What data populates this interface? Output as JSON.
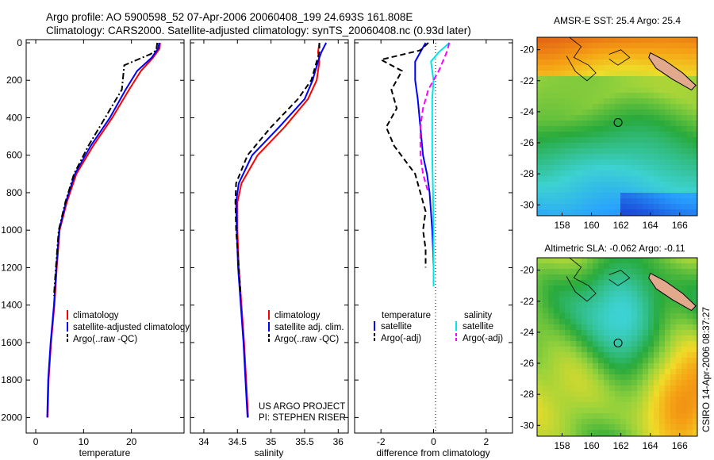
{
  "title": {
    "line1": "Argo profile: AO 5900598_52 07-Apr-2006 20060408_199 24.693S 161.808E",
    "line2": "Climatology: CARS2000. Satellite-adjusted climatology: synTS_20060408.nc (0.93d later)"
  },
  "side_label": "CSIRO 14-Apr-2006 08:37:27",
  "colors": {
    "red": "#ff0000",
    "blue": "#0000ff",
    "black": "#000000",
    "cyan": "#00e5e5",
    "magenta": "#ff00ff"
  },
  "chart_data": [
    {
      "type": "line",
      "name": "temperature",
      "xlabel": "temperature",
      "xlim": [
        -2,
        31
      ],
      "ylim": [
        2100,
        0
      ],
      "xticks": [
        0,
        10,
        20
      ],
      "yticks": [
        0,
        200,
        400,
        600,
        800,
        1000,
        1200,
        1400,
        1600,
        1800,
        2000
      ],
      "series": [
        {
          "name": "climatology",
          "color": "#ff0000",
          "style": "solid",
          "x": [
            26.0,
            25.9,
            24.5,
            22.0,
            19.5,
            16.0,
            12.0,
            8.5,
            6.5,
            5.0,
            4.4,
            3.9,
            3.2,
            2.7,
            2.5
          ],
          "y": [
            0,
            30,
            80,
            150,
            250,
            400,
            550,
            700,
            850,
            1000,
            1200,
            1400,
            1600,
            1800,
            2000
          ]
        },
        {
          "name": "satellite-adjusted climatology",
          "color": "#0000ff",
          "style": "solid",
          "x": [
            25.8,
            25.6,
            24.2,
            21.2,
            18.8,
            15.5,
            11.5,
            8.2,
            6.3,
            4.9,
            4.3,
            3.8,
            3.1,
            2.6,
            2.4
          ],
          "y": [
            0,
            30,
            80,
            150,
            250,
            400,
            550,
            700,
            850,
            1000,
            1200,
            1400,
            1600,
            1800,
            2000
          ]
        },
        {
          "name": "Argo(..raw -QC)",
          "color": "#000000",
          "style": "dashdot",
          "x": [
            25.4,
            25.2,
            24.0,
            18.5,
            18.0,
            14.5,
            11.0,
            8.0,
            6.2,
            4.8,
            4.2,
            3.8
          ],
          "y": [
            0,
            40,
            60,
            120,
            250,
            400,
            550,
            700,
            850,
            1000,
            1200,
            1350
          ]
        }
      ],
      "legend": [
        "climatology",
        "satellite-adjusted climatology",
        "Argo(..raw -QC)"
      ]
    },
    {
      "type": "line",
      "name": "salinity",
      "xlabel": "salinity",
      "xlim": [
        33.8,
        36.15
      ],
      "ylim": [
        2100,
        0
      ],
      "xticks": [
        34,
        34.5,
        35,
        35.5,
        36
      ],
      "series": [
        {
          "name": "climatology",
          "color": "#ff0000",
          "style": "solid",
          "x": [
            35.72,
            35.7,
            35.72,
            35.68,
            35.55,
            35.2,
            34.8,
            34.56,
            34.5,
            34.5,
            34.52,
            34.56,
            34.6,
            34.63,
            34.66
          ],
          "y": [
            0,
            50,
            100,
            200,
            300,
            450,
            600,
            750,
            850,
            1000,
            1200,
            1400,
            1600,
            1800,
            2000
          ]
        },
        {
          "name": "satellite adj. clim.",
          "color": "#0000ff",
          "style": "solid",
          "x": [
            35.82,
            35.75,
            35.7,
            35.62,
            35.5,
            35.12,
            34.72,
            34.52,
            34.48,
            34.49,
            34.51,
            34.55,
            34.59,
            34.62,
            34.65
          ],
          "y": [
            0,
            50,
            100,
            200,
            300,
            450,
            600,
            750,
            850,
            1000,
            1200,
            1400,
            1600,
            1800,
            2000
          ]
        },
        {
          "name": "Argo(..raw -QC)",
          "color": "#000000",
          "style": "dashed",
          "x": [
            35.72,
            35.72,
            35.68,
            35.6,
            35.4,
            35.0,
            34.65,
            34.48,
            34.47,
            34.48,
            34.52,
            34.55
          ],
          "y": [
            0,
            50,
            100,
            200,
            300,
            450,
            600,
            750,
            850,
            1000,
            1200,
            1350
          ]
        }
      ],
      "legend": [
        "climatology",
        "satellite adj. clim.",
        "Argo(..raw -QC)"
      ],
      "annotation": [
        "US ARGO PROJECT",
        "PI: STEPHEN RISER"
      ]
    },
    {
      "type": "line",
      "name": "difference from climatology",
      "xlabel": "difference from climatology",
      "xlim": [
        -3.0,
        3.0
      ],
      "ylim": [
        2100,
        0
      ],
      "xticks": [
        -2,
        0,
        2
      ],
      "series": [
        {
          "name": "temperature satellite",
          "color": "#0000ff",
          "style": "solid",
          "x": [
            -0.3,
            -0.5,
            -0.7,
            -0.7,
            -0.6,
            -0.5,
            -0.4,
            -0.25,
            -0.15,
            -0.1,
            -0.05,
            -0.02,
            0
          ],
          "y": [
            0,
            50,
            100,
            200,
            300,
            450,
            600,
            700,
            800,
            900,
            1000,
            1100,
            1200
          ]
        },
        {
          "name": "temperature Argo(-adj)",
          "color": "#000000",
          "style": "dashed",
          "x": [
            -0.2,
            -0.5,
            -2.0,
            -1.2,
            -1.6,
            -1.4,
            -1.8,
            -1.5,
            -0.7,
            -0.5,
            -0.3,
            -0.4,
            -0.3,
            -0.3
          ],
          "y": [
            0,
            40,
            90,
            150,
            250,
            350,
            450,
            550,
            700,
            800,
            900,
            1000,
            1100,
            1200
          ]
        },
        {
          "name": "salinity satellite",
          "color": "#00e5e5",
          "style": "solid",
          "x": [
            0.6,
            0.2,
            -0.1,
            0.0,
            -0.05,
            -0.05,
            -0.05,
            -0.02,
            0.0,
            0.0,
            0.0
          ],
          "y": [
            0,
            50,
            100,
            200,
            300,
            400,
            600,
            800,
            1000,
            1200,
            1300
          ]
        },
        {
          "name": "salinity Argo(-adj)",
          "color": "#ff00ff",
          "style": "dashed",
          "x": [
            0.6,
            0.5,
            0.2,
            -0.2,
            -0.4,
            -0.5,
            -0.5,
            -0.4,
            -0.2
          ],
          "y": [
            0,
            50,
            150,
            250,
            350,
            450,
            600,
            700,
            800
          ]
        }
      ],
      "legend": [
        {
          "group": "temperature",
          "items": [
            "satellite",
            "Argo(-adj)"
          ]
        },
        {
          "group": "salinity",
          "items": [
            "satellite",
            "Argo(-adj)"
          ]
        }
      ]
    },
    {
      "type": "heatmap",
      "name": "sst-map",
      "title": "AMSR-E SST: 25.4  Argo: 25.4",
      "xticks": [
        158,
        160,
        162,
        164,
        166
      ],
      "yticks": [
        -20,
        -22,
        -24,
        -26,
        -28,
        -30
      ],
      "xlim": [
        156.3,
        167.2
      ],
      "ylim": [
        -30.7,
        -19.2
      ],
      "argo_point": [
        161.808,
        -24.693
      ]
    },
    {
      "type": "heatmap",
      "name": "sla-map",
      "title": "Altimetric SLA: -0.062  Argo: -0.11",
      "xticks": [
        158,
        160,
        162,
        164,
        166
      ],
      "yticks": [
        -20,
        -22,
        -24,
        -26,
        -28,
        -30
      ],
      "xlim": [
        156.3,
        167.2
      ],
      "ylim": [
        -30.7,
        -19.2
      ],
      "argo_point": [
        161.808,
        -24.693
      ]
    }
  ]
}
